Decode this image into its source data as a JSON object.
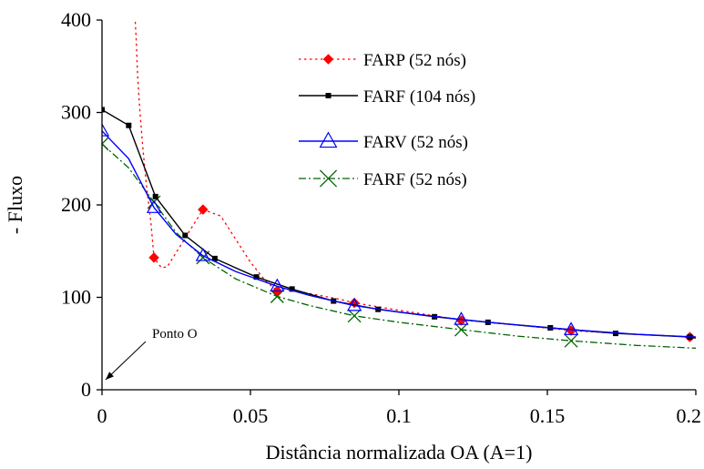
{
  "chart_data": {
    "type": "line",
    "title": "",
    "xlabel": "Distância normalizada OA (A=1)",
    "ylabel": "- Fluxo",
    "xlim": [
      0,
      0.2
    ],
    "ylim": [
      0,
      400
    ],
    "xticks": [
      0,
      0.05,
      0.1,
      0.15,
      0.2
    ],
    "xtick_labels": [
      "0",
      "0.05",
      "0.1",
      "0.15",
      "0.2"
    ],
    "yticks": [
      0,
      100,
      200,
      300,
      400
    ],
    "ytick_labels": [
      "0",
      "100",
      "200",
      "300",
      "400"
    ],
    "grid": false,
    "legend_position": "top-right",
    "series": [
      {
        "name": "FARP (52 nós)",
        "color": "#ff0000",
        "line_style": "dotted",
        "marker": "diamond",
        "line": [
          [
            0.011,
            410
          ],
          [
            0.0115,
            380
          ],
          [
            0.012,
            340
          ],
          [
            0.0128,
            300
          ],
          [
            0.0138,
            260
          ],
          [
            0.015,
            220
          ],
          [
            0.0165,
            180
          ],
          [
            0.0175,
            143
          ],
          [
            0.02,
            132
          ],
          [
            0.022,
            133
          ],
          [
            0.034,
            195
          ],
          [
            0.04,
            188
          ],
          [
            0.05,
            138
          ],
          [
            0.055,
            118
          ],
          [
            0.059,
            107
          ],
          [
            0.06,
            110
          ],
          [
            0.07,
            104
          ],
          [
            0.08,
            98
          ],
          [
            0.085,
            94
          ],
          [
            0.1,
            86
          ],
          [
            0.12,
            76
          ],
          [
            0.14,
            70
          ],
          [
            0.158,
            64
          ],
          [
            0.18,
            60
          ],
          [
            0.2,
            57
          ]
        ],
        "markers": [
          [
            0.0175,
            143
          ],
          [
            0.034,
            195
          ],
          [
            0.059,
            107
          ],
          [
            0.085,
            94
          ],
          [
            0.121,
            75
          ],
          [
            0.158,
            64
          ],
          [
            0.198,
            57
          ]
        ]
      },
      {
        "name": "FARF (104 nós)",
        "color": "#000000",
        "line_style": "solid",
        "marker": "square",
        "line": [
          [
            0,
            303
          ],
          [
            0.009,
            286
          ],
          [
            0.018,
            209
          ],
          [
            0.028,
            167
          ],
          [
            0.038,
            142
          ],
          [
            0.052,
            122
          ],
          [
            0.064,
            109
          ],
          [
            0.078,
            96
          ],
          [
            0.093,
            87
          ],
          [
            0.112,
            79
          ],
          [
            0.13,
            73
          ],
          [
            0.151,
            67
          ],
          [
            0.173,
            61
          ],
          [
            0.198,
            57
          ],
          [
            0.2,
            56
          ]
        ],
        "markers": [
          [
            0,
            303
          ],
          [
            0.009,
            286
          ],
          [
            0.018,
            209
          ],
          [
            0.028,
            167
          ],
          [
            0.038,
            142
          ],
          [
            0.052,
            122
          ],
          [
            0.064,
            109
          ],
          [
            0.078,
            96
          ],
          [
            0.093,
            87
          ],
          [
            0.112,
            79
          ],
          [
            0.13,
            73
          ],
          [
            0.151,
            67
          ],
          [
            0.173,
            61
          ],
          [
            0.198,
            57
          ]
        ]
      },
      {
        "name": "FARV (52 nós)",
        "color": "#0000ff",
        "line_style": "solid",
        "marker": "triangle",
        "line": [
          [
            0,
            280
          ],
          [
            0.009,
            250
          ],
          [
            0.0175,
            197
          ],
          [
            0.025,
            168
          ],
          [
            0.034,
            145
          ],
          [
            0.045,
            128
          ],
          [
            0.059,
            112
          ],
          [
            0.07,
            102
          ],
          [
            0.085,
            91
          ],
          [
            0.1,
            84
          ],
          [
            0.121,
            76
          ],
          [
            0.14,
            70
          ],
          [
            0.158,
            65
          ],
          [
            0.18,
            60
          ],
          [
            0.2,
            57
          ]
        ],
        "markers": [
          [
            0,
            280
          ],
          [
            0.0175,
            197
          ],
          [
            0.034,
            145
          ],
          [
            0.059,
            112
          ],
          [
            0.085,
            91
          ],
          [
            0.121,
            76
          ],
          [
            0.158,
            65
          ]
        ]
      },
      {
        "name": "FARF (52 nós)",
        "color": "#006400",
        "line_style": "dashdot",
        "marker": "x",
        "line": [
          [
            0,
            266
          ],
          [
            0.009,
            240
          ],
          [
            0.0175,
            203
          ],
          [
            0.025,
            170
          ],
          [
            0.034,
            143
          ],
          [
            0.045,
            120
          ],
          [
            0.059,
            101
          ],
          [
            0.07,
            91
          ],
          [
            0.085,
            80
          ],
          [
            0.1,
            73
          ],
          [
            0.121,
            65
          ],
          [
            0.14,
            58
          ],
          [
            0.158,
            53
          ],
          [
            0.18,
            48
          ],
          [
            0.2,
            45
          ]
        ],
        "markers": [
          [
            0,
            266
          ],
          [
            0.0175,
            203
          ],
          [
            0.034,
            143
          ],
          [
            0.059,
            101
          ],
          [
            0.085,
            80
          ],
          [
            0.121,
            65
          ],
          [
            0.158,
            53
          ]
        ]
      }
    ],
    "annotations": [
      {
        "text": "Ponto O",
        "points_to": [
          0,
          0
        ]
      }
    ]
  }
}
